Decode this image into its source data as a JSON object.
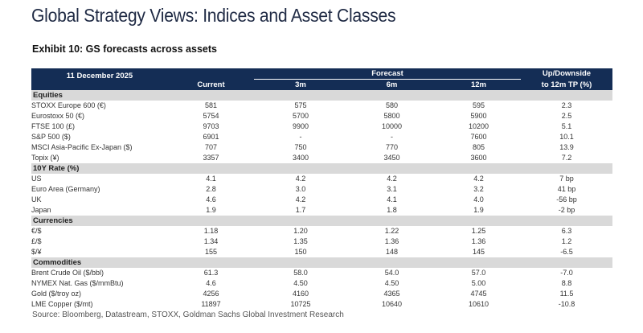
{
  "title": "Global Strategy Views: Indices and Asset Classes",
  "exhibit": "Exhibit 10: GS forecasts across assets",
  "header": {
    "date": "11 December 2025",
    "current": "Current",
    "forecast": "Forecast",
    "m3": "3m",
    "m6": "6m",
    "m12": "12m",
    "updown1": "Up/Downside",
    "updown2": "to 12m TP (%)"
  },
  "sections": [
    {
      "name": "Equities",
      "rows": [
        [
          "STOXX Europe 600 (€)",
          "581",
          "575",
          "580",
          "595",
          "2.3"
        ],
        [
          "Eurostoxx 50 (€)",
          "5754",
          "5700",
          "5800",
          "5900",
          "2.5"
        ],
        [
          "FTSE 100 (£)",
          "9703",
          "9900",
          "10000",
          "10200",
          "5.1"
        ],
        [
          "S&P 500 ($)",
          "6901",
          "-",
          "-",
          "7600",
          "10.1"
        ],
        [
          "MSCI Asia-Pacific Ex-Japan ($)",
          "707",
          "750",
          "770",
          "805",
          "13.9"
        ],
        [
          "Topix (¥)",
          "3357",
          "3400",
          "3450",
          "3600",
          "7.2"
        ]
      ]
    },
    {
      "name": "10Y Rate (%)",
      "rows": [
        [
          "US",
          "4.1",
          "4.2",
          "4.2",
          "4.2",
          "7 bp"
        ],
        [
          "Euro Area (Germany)",
          "2.8",
          "3.0",
          "3.1",
          "3.2",
          "41 bp"
        ],
        [
          "UK",
          "4.6",
          "4.2",
          "4.1",
          "4.0",
          "-56 bp"
        ],
        [
          "Japan",
          "1.9",
          "1.7",
          "1.8",
          "1.9",
          "-2 bp"
        ]
      ]
    },
    {
      "name": "Currencies",
      "rows": [
        [
          "€/$",
          "1.18",
          "1.20",
          "1.22",
          "1.25",
          "6.3"
        ],
        [
          "£/$",
          "1.34",
          "1.35",
          "1.36",
          "1.36",
          "1.2"
        ],
        [
          "$/¥",
          "155",
          "150",
          "148",
          "145",
          "-6.5"
        ]
      ]
    },
    {
      "name": "Commodities",
      "rows": [
        [
          "Brent Crude Oil ($/bbl)",
          "61.3",
          "58.0",
          "54.0",
          "57.0",
          "-7.0"
        ],
        [
          "NYMEX Nat. Gas ($/mmBtu)",
          "4.6",
          "4.50",
          "4.50",
          "5.00",
          "8.8"
        ],
        [
          "Gold ($/troy oz)",
          "4256",
          "4160",
          "4365",
          "4745",
          "11.5"
        ],
        [
          "LME Copper ($/mt)",
          "11897",
          "10725",
          "10640",
          "10610",
          "-10.8"
        ]
      ]
    }
  ],
  "source": "Source: Bloomberg, Datastream, STOXX, Goldman Sachs Global Investment Research",
  "colors": {
    "header_bg": "#142d55",
    "section_bg": "#d9d9d9"
  }
}
